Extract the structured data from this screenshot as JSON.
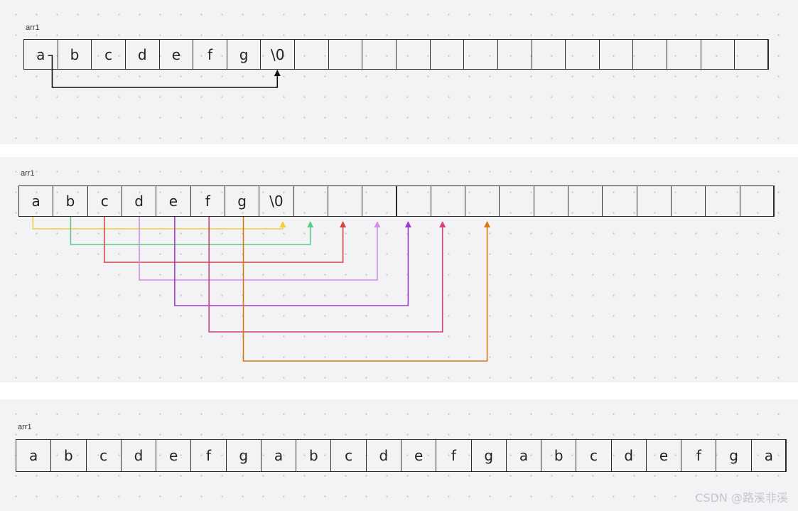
{
  "diagrams": [
    {
      "label": "arr1",
      "cells": [
        "a",
        "b",
        "c",
        "d",
        "e",
        "f",
        "g",
        "\\0",
        "",
        "",
        "",
        "",
        "",
        "",
        "",
        "",
        "",
        "",
        "",
        "",
        "",
        ""
      ]
    },
    {
      "label": "arr1",
      "cells": [
        "a",
        "b",
        "c",
        "d",
        "e",
        "f",
        "g",
        "\\0",
        "",
        "",
        "",
        "",
        "",
        "",
        "",
        "",
        "",
        "",
        "",
        "",
        "",
        ""
      ]
    },
    {
      "label": "arr1",
      "cells": [
        "a",
        "b",
        "c",
        "d",
        "e",
        "f",
        "g",
        "a",
        "b",
        "c",
        "d",
        "e",
        "f",
        "g",
        "a",
        "b",
        "c",
        "d",
        "e",
        "f",
        "g",
        "a"
      ]
    }
  ],
  "moves_top": [
    {
      "from": 0,
      "to": 7,
      "color": "#111111"
    }
  ],
  "moves_middle": [
    {
      "from": 0,
      "to": 7,
      "color": "#f2cf3c"
    },
    {
      "from": 1,
      "to": 8,
      "color": "#5ec98a"
    },
    {
      "from": 2,
      "to": 9,
      "color": "#d04747"
    },
    {
      "from": 3,
      "to": 10,
      "color": "#d38ee8"
    },
    {
      "from": 4,
      "to": 11,
      "color": "#9a3fc7"
    },
    {
      "from": 5,
      "to": 12,
      "color": "#d0427c"
    },
    {
      "from": 6,
      "to": 13,
      "color": "#d77a16"
    }
  ],
  "watermark": "CSDN @路溪非溪"
}
